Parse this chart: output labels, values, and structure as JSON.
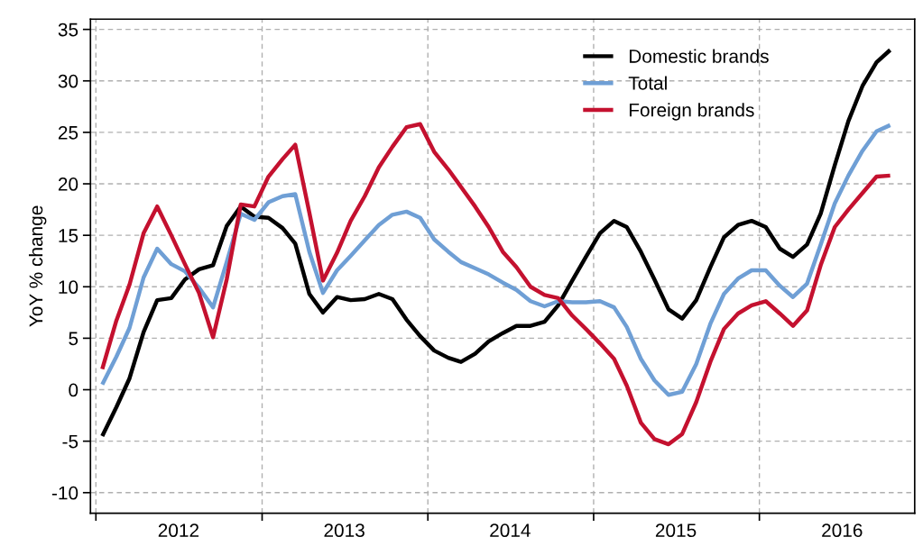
{
  "chart_data": {
    "type": "line",
    "ylabel": "YoY % change",
    "x": [
      "2012-01-15",
      "2012-02-15",
      "2012-03-15",
      "2012-04-15",
      "2012-05-15",
      "2012-06-15",
      "2012-07-15",
      "2012-08-15",
      "2012-09-15",
      "2012-10-15",
      "2012-11-15",
      "2012-12-15",
      "2013-01-15",
      "2013-02-15",
      "2013-03-15",
      "2013-04-15",
      "2013-05-15",
      "2013-06-15",
      "2013-07-15",
      "2013-08-15",
      "2013-09-15",
      "2013-10-15",
      "2013-11-15",
      "2013-12-15",
      "2014-01-15",
      "2014-02-15",
      "2014-03-15",
      "2014-04-15",
      "2014-05-15",
      "2014-06-15",
      "2014-07-15",
      "2014-08-15",
      "2014-09-15",
      "2014-10-15",
      "2014-11-15",
      "2014-12-15",
      "2015-01-15",
      "2015-02-15",
      "2015-03-15",
      "2015-04-15",
      "2015-05-15",
      "2015-06-15",
      "2015-07-15",
      "2015-08-15",
      "2015-09-15",
      "2015-10-15",
      "2015-11-15",
      "2015-12-15",
      "2016-01-15",
      "2016-02-15",
      "2016-03-15",
      "2016-04-15",
      "2016-05-15",
      "2016-06-15",
      "2016-07-15",
      "2016-08-15",
      "2016-09-15",
      "2016-10-15"
    ],
    "series": [
      {
        "name": "Domestic brands",
        "color": "#000000",
        "values": [
          -4.5,
          -1.7,
          1.1,
          5.6,
          8.7,
          8.9,
          10.7,
          11.7,
          12.1,
          15.9,
          17.8,
          16.8,
          16.7,
          15.7,
          14.2,
          9.3,
          7.5,
          9.0,
          8.7,
          8.8,
          9.3,
          8.8,
          6.8,
          5.2,
          3.8,
          3.1,
          2.7,
          3.5,
          4.7,
          5.5,
          6.2,
          6.2,
          6.6,
          8.2,
          10.6,
          12.9,
          15.2,
          16.4,
          15.8,
          13.4,
          10.7,
          7.8,
          6.9,
          8.7,
          11.9,
          14.8,
          16.0,
          16.4,
          15.8,
          13.7,
          12.9,
          14.1,
          17.1,
          21.8,
          26.1,
          29.5,
          31.8,
          33.0
        ]
      },
      {
        "name": "Total",
        "color": "#6f9fd5",
        "values": [
          0.5,
          3.2,
          6.0,
          10.9,
          13.7,
          12.2,
          11.5,
          9.9,
          8.0,
          12.4,
          17.1,
          16.5,
          18.2,
          18.8,
          19.0,
          13.4,
          9.4,
          11.6,
          13.0,
          14.5,
          16.0,
          17.0,
          17.3,
          16.7,
          14.6,
          13.4,
          12.4,
          11.8,
          11.2,
          10.4,
          9.7,
          8.6,
          8.1,
          8.6,
          8.5,
          8.5,
          8.6,
          8.0,
          6.1,
          3.0,
          0.9,
          -0.5,
          -0.2,
          2.5,
          6.4,
          9.3,
          10.8,
          11.6,
          11.6,
          10.1,
          9.0,
          10.3,
          14.1,
          18.1,
          20.8,
          23.2,
          25.1,
          25.7
        ]
      },
      {
        "name": "Foreign brands",
        "color": "#c4112f",
        "values": [
          2.0,
          6.7,
          10.2,
          15.2,
          17.8,
          15.0,
          12.2,
          9.4,
          5.1,
          10.7,
          18.0,
          17.8,
          20.7,
          22.4,
          23.8,
          17.2,
          10.6,
          13.3,
          16.4,
          18.8,
          21.6,
          23.6,
          25.5,
          25.8,
          23.1,
          21.4,
          19.7,
          17.8,
          15.8,
          13.4,
          11.9,
          10.0,
          9.2,
          8.9,
          7.2,
          5.9,
          4.5,
          3.0,
          0.4,
          -3.2,
          -4.8,
          -5.3,
          -4.3,
          -1.2,
          2.7,
          5.9,
          7.4,
          8.2,
          8.6,
          7.4,
          6.2,
          7.7,
          12.1,
          15.8,
          17.5,
          19.1,
          20.7,
          20.8
        ]
      }
    ],
    "xlim": [
      "2011-12-20",
      "2016-12-08"
    ],
    "xticks": [
      {
        "value": "2012-01-01",
        "label": null
      },
      {
        "value": "2012-07-01",
        "label": "2012"
      },
      {
        "value": "2013-01-01",
        "label": null
      },
      {
        "value": "2013-07-01",
        "label": "2013"
      },
      {
        "value": "2014-01-01",
        "label": null
      },
      {
        "value": "2014-07-01",
        "label": "2014"
      },
      {
        "value": "2015-01-01",
        "label": null
      },
      {
        "value": "2015-07-01",
        "label": "2015"
      },
      {
        "value": "2016-01-01",
        "label": null
      },
      {
        "value": "2016-07-01",
        "label": "2016"
      }
    ],
    "ylim": [
      -12,
      36
    ],
    "yticks": [
      -10,
      -5,
      0,
      5,
      10,
      15,
      20,
      25,
      30,
      35
    ],
    "grid": true,
    "legend": "top right",
    "line_style": "solid",
    "marker": "none"
  }
}
